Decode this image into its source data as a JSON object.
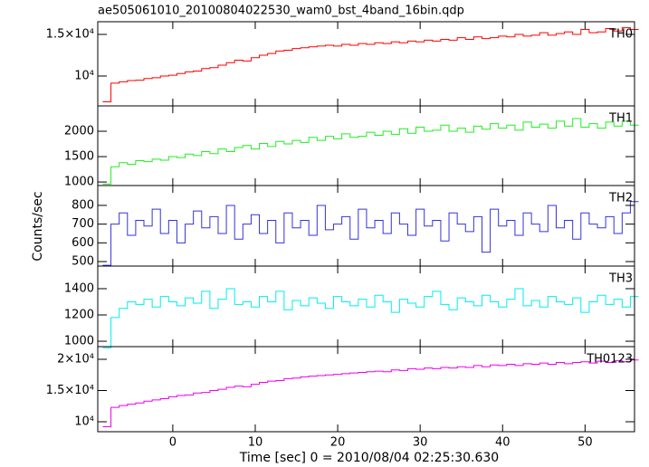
{
  "chart_data": {
    "type": "line",
    "title": "ae505061010_20100804022530_wam0_bst_4band_16bin.qdp",
    "x_label": "Time [sec] 0 = 2010/08/04 02:25:30.630",
    "y_label": "Counts/sec",
    "xlim": [
      -9.1,
      56
    ],
    "xticks": [
      0,
      10,
      20,
      30,
      40,
      50
    ],
    "x": [
      -8,
      -7,
      -6,
      -5,
      -4,
      -3,
      -2,
      -1,
      0,
      1,
      2,
      3,
      4,
      5,
      6,
      7,
      8,
      9,
      10,
      11,
      12,
      13,
      14,
      15,
      16,
      17,
      18,
      19,
      20,
      21,
      22,
      23,
      24,
      25,
      26,
      27,
      28,
      29,
      30,
      31,
      32,
      33,
      34,
      35,
      36,
      37,
      38,
      39,
      40,
      41,
      42,
      43,
      44,
      45,
      46,
      47,
      48,
      49,
      50,
      51,
      52,
      53,
      54,
      55,
      56
    ],
    "series": [
      {
        "name": "TH0",
        "color": "#ff0000",
        "ylim": [
          6413,
          16520
        ],
        "yticks": [
          {
            "value": 10000,
            "label": "10⁴"
          },
          {
            "value": 15000,
            "label": "1.5×10⁴"
          }
        ],
        "values": [
          6900,
          9150,
          9300,
          9450,
          9500,
          9700,
          9800,
          10000,
          10100,
          10300,
          10500,
          10600,
          10900,
          11000,
          11300,
          11600,
          11900,
          11800,
          12200,
          12500,
          12700,
          13000,
          13100,
          13300,
          13400,
          13500,
          13600,
          13700,
          13600,
          13800,
          13700,
          13900,
          13800,
          14000,
          13900,
          14100,
          14000,
          14200,
          14100,
          14300,
          14200,
          14400,
          14300,
          14600,
          14400,
          14700,
          14500,
          14600,
          14800,
          14700,
          15000,
          14800,
          14900,
          15200,
          14900,
          15100,
          15300,
          15000,
          15600,
          15200,
          15300,
          15700,
          15400,
          15800,
          15600
        ]
      },
      {
        "name": "TH1",
        "color": "#22ee22",
        "ylim": [
          930,
          2500
        ],
        "yticks": [
          1000,
          1500,
          2000
        ],
        "values": [
          960,
          1300,
          1380,
          1350,
          1420,
          1400,
          1450,
          1430,
          1500,
          1480,
          1550,
          1520,
          1600,
          1560,
          1650,
          1600,
          1680,
          1720,
          1650,
          1760,
          1700,
          1800,
          1750,
          1820,
          1780,
          1880,
          1820,
          1900,
          1850,
          1950,
          1880,
          1900,
          1980,
          1920,
          2000,
          1940,
          2050,
          1960,
          2080,
          2000,
          2020,
          2120,
          2000,
          2060,
          1980,
          2100,
          2040,
          2150,
          2060,
          2120,
          2020,
          2180,
          2080,
          2140,
          2060,
          2200,
          2100,
          2250,
          2080,
          2150,
          2060,
          2180,
          2100,
          2200,
          2120
        ]
      },
      {
        "name": "TH2",
        "color": "#3333dd",
        "ylim": [
          476,
          906
        ],
        "yticks": [
          500,
          600,
          700,
          800
        ],
        "values": [
          480,
          700,
          760,
          640,
          720,
          690,
          780,
          650,
          720,
          600,
          700,
          770,
          680,
          740,
          650,
          800,
          620,
          700,
          750,
          650,
          720,
          600,
          760,
          680,
          720,
          640,
          800,
          670,
          700,
          740,
          620,
          780,
          680,
          720,
          650,
          760,
          700,
          640,
          780,
          690,
          720,
          610,
          760,
          700,
          660,
          740,
          550,
          780,
          690,
          720,
          640,
          760,
          700,
          660,
          800,
          680,
          720,
          620,
          760,
          700,
          680,
          740,
          650,
          760,
          820
        ]
      },
      {
        "name": "TH3",
        "color": "#00eeee",
        "ylim": [
          959,
          1572
        ],
        "yticks": [
          1000,
          1200,
          1400
        ],
        "values": [
          950,
          1180,
          1250,
          1300,
          1280,
          1320,
          1260,
          1340,
          1300,
          1270,
          1330,
          1290,
          1380,
          1250,
          1320,
          1400,
          1280,
          1300,
          1260,
          1340,
          1300,
          1380,
          1240,
          1310,
          1270,
          1330,
          1290,
          1250,
          1340,
          1300,
          1270,
          1320,
          1260,
          1350,
          1300,
          1220,
          1320,
          1290,
          1260,
          1340,
          1380,
          1280,
          1240,
          1330,
          1300,
          1270,
          1350,
          1300,
          1260,
          1320,
          1400,
          1270,
          1310,
          1260,
          1340,
          1300,
          1280,
          1330,
          1220,
          1300,
          1350,
          1280,
          1320,
          1260,
          1340
        ]
      },
      {
        "name": "TH0123",
        "color": "#ee00ee",
        "ylim": [
          8406,
          22030
        ],
        "yticks": [
          {
            "value": 10000,
            "label": "10⁴"
          },
          {
            "value": 15000,
            "label": "1.5×10⁴"
          },
          {
            "value": 20000,
            "label": "2×10⁴"
          }
        ],
        "values": [
          9200,
          12300,
          12600,
          12800,
          13000,
          13300,
          13500,
          13700,
          14000,
          14200,
          14300,
          14600,
          14700,
          15000,
          15200,
          15500,
          15700,
          15600,
          16000,
          16300,
          16500,
          16600,
          16900,
          17000,
          17200,
          17300,
          17400,
          17500,
          17600,
          17700,
          17800,
          17900,
          18000,
          18100,
          18000,
          18300,
          18200,
          18500,
          18400,
          18600,
          18500,
          18700,
          18600,
          18800,
          18700,
          19000,
          18800,
          19100,
          19000,
          19200,
          19000,
          19300,
          19200,
          19400,
          19200,
          19500,
          19300,
          19500,
          19600,
          19400,
          19700,
          19500,
          19800,
          19600,
          19900
        ]
      }
    ]
  }
}
